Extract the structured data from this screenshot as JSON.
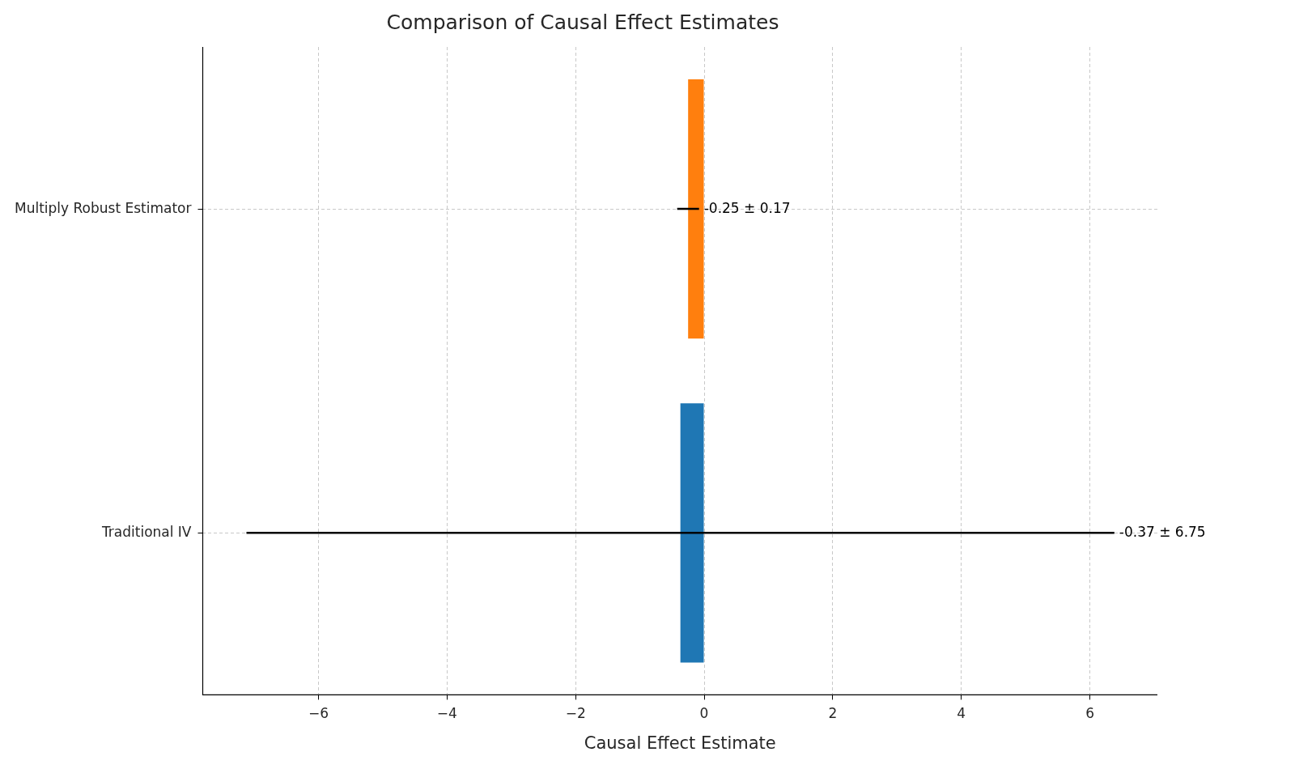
{
  "chart_data": {
    "type": "bar",
    "orientation": "horizontal",
    "title": "Comparison of Causal Effect Estimates",
    "x_label": "Causal Effect Estimate",
    "categories": [
      "Multiply Robust Estimator",
      "Traditional IV"
    ],
    "values": [
      -0.25,
      -0.37
    ],
    "errors": [
      0.17,
      6.75
    ],
    "colors": [
      "#ff7f0e",
      "#1f77b4"
    ],
    "data_labels": true,
    "value_labels": [
      "-0.25 ± 0.17",
      "-0.37 ± 6.75"
    ],
    "xlim": [
      -7.8,
      7.05
    ],
    "xticks": [
      {
        "value": -6,
        "label": "−6"
      },
      {
        "value": -4,
        "label": "−4"
      },
      {
        "value": -2,
        "label": "−2"
      },
      0,
      2,
      4,
      6
    ],
    "grid": true
  }
}
